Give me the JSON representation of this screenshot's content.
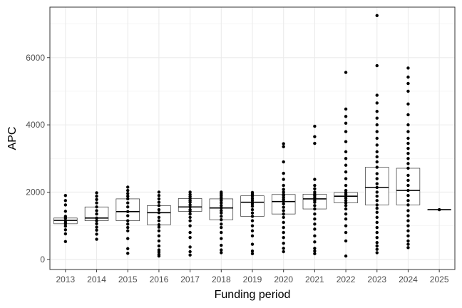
{
  "chart_data": {
    "type": "box",
    "title": "",
    "xlabel": "Funding period",
    "ylabel": "APC",
    "ylim": [
      -300,
      7500
    ],
    "y_ticks": [
      0,
      2000,
      4000,
      6000
    ],
    "y_tick_labels": [
      "0",
      "2000",
      "4000",
      "6000"
    ],
    "grid": true,
    "legend": "none",
    "categories": [
      "2013",
      "2014",
      "2015",
      "2016",
      "2017",
      "2018",
      "2019",
      "2020",
      "2021",
      "2022",
      "2023",
      "2024",
      "2025"
    ],
    "boxes": [
      {
        "category": "2013",
        "q1": 1060,
        "median": 1160,
        "q3": 1230
      },
      {
        "category": "2014",
        "q1": 1150,
        "median": 1230,
        "q3": 1560
      },
      {
        "category": "2015",
        "q1": 1150,
        "median": 1420,
        "q3": 1800
      },
      {
        "category": "2016",
        "q1": 1030,
        "median": 1390,
        "q3": 1600
      },
      {
        "category": "2017",
        "q1": 1430,
        "median": 1560,
        "q3": 1810
      },
      {
        "category": "2018",
        "q1": 1180,
        "median": 1530,
        "q3": 1800
      },
      {
        "category": "2019",
        "q1": 1280,
        "median": 1700,
        "q3": 1890
      },
      {
        "category": "2020",
        "q1": 1350,
        "median": 1720,
        "q3": 1930
      },
      {
        "category": "2021",
        "q1": 1500,
        "median": 1800,
        "q3": 1940
      },
      {
        "category": "2022",
        "q1": 1680,
        "median": 1880,
        "q3": 1990
      },
      {
        "category": "2023",
        "q1": 1620,
        "median": 2140,
        "q3": 2740
      },
      {
        "category": "2024",
        "q1": 1620,
        "median": 2050,
        "q3": 2710
      },
      {
        "category": "2025",
        "q1": 1480,
        "median": 1480,
        "q3": 1480
      }
    ],
    "points": [
      {
        "category": "2013",
        "values": [
          530,
          760,
          880,
          990,
          1060,
          1110,
          1160,
          1230,
          1280,
          1430,
          1620,
          1750,
          1900
        ]
      },
      {
        "category": "2014",
        "values": [
          600,
          750,
          870,
          960,
          1060,
          1150,
          1230,
          1350,
          1450,
          1560,
          1680,
          1780,
          1880,
          1980
        ]
      },
      {
        "category": "2015",
        "values": [
          180,
          320,
          620,
          850,
          950,
          1050,
          1150,
          1300,
          1420,
          1560,
          1680,
          1800,
          1880,
          1960,
          2050,
          2150
        ]
      },
      {
        "category": "2016",
        "values": [
          100,
          150,
          220,
          280,
          400,
          550,
          700,
          850,
          960,
          1030,
          1150,
          1250,
          1390,
          1480,
          1600,
          1700,
          1800,
          1900,
          2000
        ]
      },
      {
        "category": "2017",
        "values": [
          130,
          230,
          370,
          650,
          800,
          1000,
          1150,
          1250,
          1350,
          1430,
          1480,
          1560,
          1620,
          1700,
          1750,
          1810,
          1870,
          1930,
          2000
        ]
      },
      {
        "category": "2018",
        "values": [
          200,
          280,
          420,
          620,
          800,
          950,
          1050,
          1180,
          1280,
          1380,
          1450,
          1530,
          1600,
          1680,
          1750,
          1800,
          1850,
          1900,
          1950,
          2000
        ]
      },
      {
        "category": "2019",
        "values": [
          170,
          250,
          450,
          700,
          850,
          1000,
          1150,
          1280,
          1380,
          1480,
          1580,
          1650,
          1700,
          1760,
          1820,
          1890,
          1940,
          1990
        ]
      },
      {
        "category": "2020",
        "values": [
          230,
          330,
          480,
          650,
          800,
          950,
          1100,
          1250,
          1350,
          1450,
          1550,
          1650,
          1720,
          1780,
          1840,
          1900,
          1930,
          2000,
          2080,
          2200,
          2380,
          2560,
          2900,
          3350,
          3440
        ]
      },
      {
        "category": "2021",
        "values": [
          170,
          250,
          330,
          520,
          700,
          900,
          1050,
          1200,
          1350,
          1500,
          1600,
          1700,
          1750,
          1800,
          1850,
          1900,
          1940,
          2000,
          2100,
          2200,
          2380,
          3450,
          3650,
          3960
        ]
      },
      {
        "category": "2022",
        "values": [
          100,
          550,
          800,
          1000,
          1200,
          1350,
          1500,
          1600,
          1680,
          1750,
          1820,
          1880,
          1940,
          1990,
          2050,
          2200,
          2400,
          2600,
          2800,
          3000,
          3200,
          3500,
          3800,
          4050,
          4250,
          4470,
          5560
        ]
      },
      {
        "category": "2023",
        "values": [
          200,
          300,
          400,
          500,
          650,
          800,
          950,
          1100,
          1250,
          1400,
          1520,
          1620,
          1750,
          1880,
          2000,
          2140,
          2250,
          2400,
          2550,
          2740,
          2900,
          3050,
          3200,
          3400,
          3600,
          3800,
          4000,
          4200,
          4400,
          4650,
          4880,
          5760,
          7250
        ]
      },
      {
        "category": "2024",
        "values": [
          350,
          450,
          550,
          700,
          850,
          1000,
          1150,
          1300,
          1450,
          1620,
          1750,
          1900,
          2050,
          2200,
          2350,
          2500,
          2710,
          2850,
          3000,
          3150,
          3300,
          3450,
          3600,
          3800,
          4000,
          4300,
          4620,
          5000,
          5230,
          5420,
          5690
        ]
      },
      {
        "category": "2025",
        "values": [
          1480
        ]
      }
    ]
  }
}
